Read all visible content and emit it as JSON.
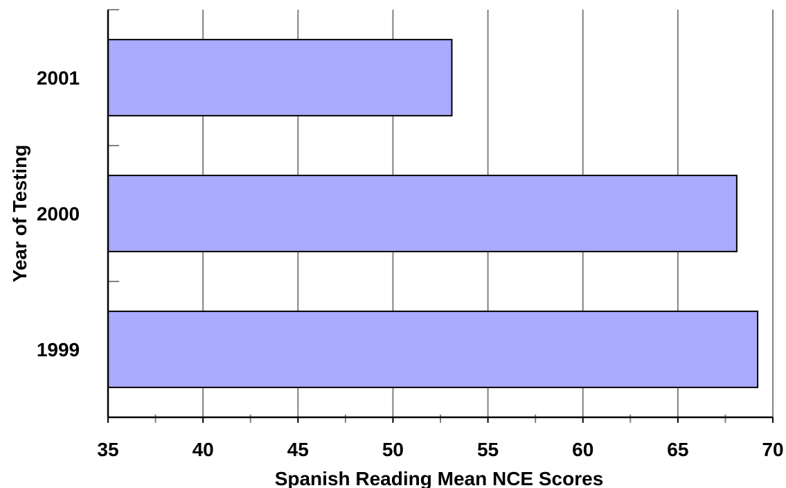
{
  "chart_data": {
    "type": "bar",
    "orientation": "horizontal",
    "title": "",
    "xlabel": "Spanish Reading Mean NCE Scores",
    "ylabel": "Year of Testing",
    "categories": [
      "2001",
      "2000",
      "1999"
    ],
    "values": [
      53.1,
      68.1,
      69.2
    ],
    "xlim": [
      35,
      70
    ],
    "xticks": [
      35,
      40,
      45,
      50,
      55,
      60,
      65,
      70
    ],
    "xtick_labels": [
      "35",
      "40",
      "45",
      "50",
      "55",
      "60",
      "65",
      "70"
    ],
    "grid": "vertical",
    "bar_color": "#aaaaff",
    "bar_edge_color": "#000000",
    "gridline_color": "#808080"
  }
}
